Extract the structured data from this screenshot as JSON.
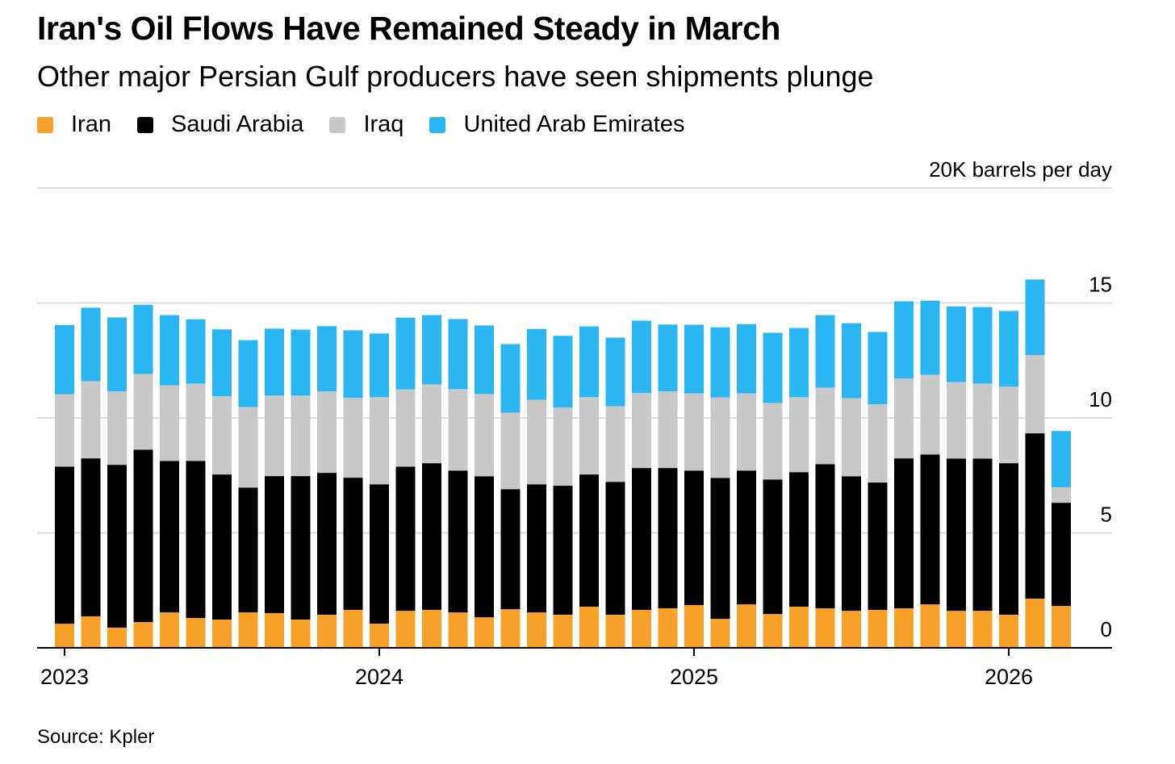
{
  "title": "Iran's Oil Flows Have Remained Steady in March",
  "subtitle": "Other major Persian Gulf producers have seen shipments plunge",
  "source": "Source: Kpler",
  "colors": {
    "Iran": "#f7a128",
    "Saudi Arabia": "#000000",
    "Iraq": "#c8c8c8",
    "United Arab Emirates": "#29b6f2"
  },
  "chart_data": {
    "type": "bar",
    "stacked": true,
    "title": "Iran's Oil Flows Have Remained Steady in March",
    "ylabel": "20K barrels per day",
    "ylim": [
      0,
      20
    ],
    "yticks": [
      "0",
      "5",
      "10",
      "15"
    ],
    "xtick_labels": [
      "2023",
      "2024",
      "2025",
      "2026"
    ],
    "legend": [
      "Iran",
      "Saudi Arabia",
      "Iraq",
      "United Arab Emirates"
    ],
    "legend_position": "top-left",
    "categories": [
      "2023-01",
      "2023-02",
      "2023-03",
      "2023-04",
      "2023-05",
      "2023-06",
      "2023-07",
      "2023-08",
      "2023-09",
      "2023-10",
      "2023-11",
      "2023-12",
      "2024-01",
      "2024-02",
      "2024-03",
      "2024-04",
      "2024-05",
      "2024-06",
      "2024-07",
      "2024-08",
      "2024-09",
      "2024-10",
      "2024-11",
      "2024-12",
      "2025-01",
      "2025-02",
      "2025-03",
      "2025-04",
      "2025-05",
      "2025-06",
      "2025-07",
      "2025-08",
      "2025-09",
      "2025-10",
      "2025-11",
      "2025-12",
      "2026-01",
      "2026-02",
      "2026-03"
    ],
    "series": [
      {
        "name": "Iran",
        "values": [
          1.05,
          1.37,
          0.88,
          1.12,
          1.54,
          1.3,
          1.23,
          1.54,
          1.51,
          1.23,
          1.44,
          1.65,
          1.05,
          1.61,
          1.65,
          1.54,
          1.33,
          1.68,
          1.54,
          1.44,
          1.79,
          1.44,
          1.65,
          1.72,
          1.86,
          1.26,
          1.89,
          1.47,
          1.79,
          1.72,
          1.61,
          1.65,
          1.72,
          1.89,
          1.61,
          1.61,
          1.44,
          2.14,
          1.82
        ]
      },
      {
        "name": "Saudi Arabia",
        "values": [
          6.83,
          6.87,
          7.08,
          7.5,
          6.59,
          6.83,
          6.31,
          5.43,
          5.96,
          6.24,
          6.17,
          5.75,
          6.06,
          6.27,
          6.38,
          6.17,
          6.13,
          5.22,
          5.57,
          5.61,
          5.75,
          5.78,
          6.17,
          6.1,
          5.85,
          6.13,
          5.82,
          5.85,
          5.85,
          6.27,
          5.85,
          5.54,
          6.52,
          6.52,
          6.62,
          6.62,
          6.59,
          7.19,
          4.49
        ]
      },
      {
        "name": "Iraq",
        "values": [
          3.15,
          3.36,
          3.19,
          3.29,
          3.29,
          3.36,
          3.4,
          3.5,
          3.5,
          3.5,
          3.54,
          3.47,
          3.79,
          3.36,
          3.43,
          3.54,
          3.58,
          3.33,
          3.68,
          3.4,
          3.36,
          3.29,
          3.26,
          3.33,
          3.36,
          3.5,
          3.36,
          3.33,
          3.26,
          3.33,
          3.4,
          3.4,
          3.47,
          3.47,
          3.33,
          3.26,
          3.33,
          3.4,
          0.67
        ]
      },
      {
        "name": "United Arab Emirates",
        "values": [
          3.01,
          3.19,
          3.22,
          3.01,
          3.05,
          2.8,
          2.91,
          2.91,
          2.91,
          2.87,
          2.84,
          2.94,
          2.77,
          3.12,
          3.01,
          3.05,
          2.98,
          2.98,
          3.08,
          3.12,
          3.08,
          2.98,
          3.15,
          2.91,
          2.98,
          3.05,
          3.01,
          3.05,
          3.01,
          3.15,
          3.26,
          3.15,
          3.36,
          3.22,
          3.29,
          3.33,
          3.29,
          3.29,
          2.45
        ]
      }
    ]
  }
}
